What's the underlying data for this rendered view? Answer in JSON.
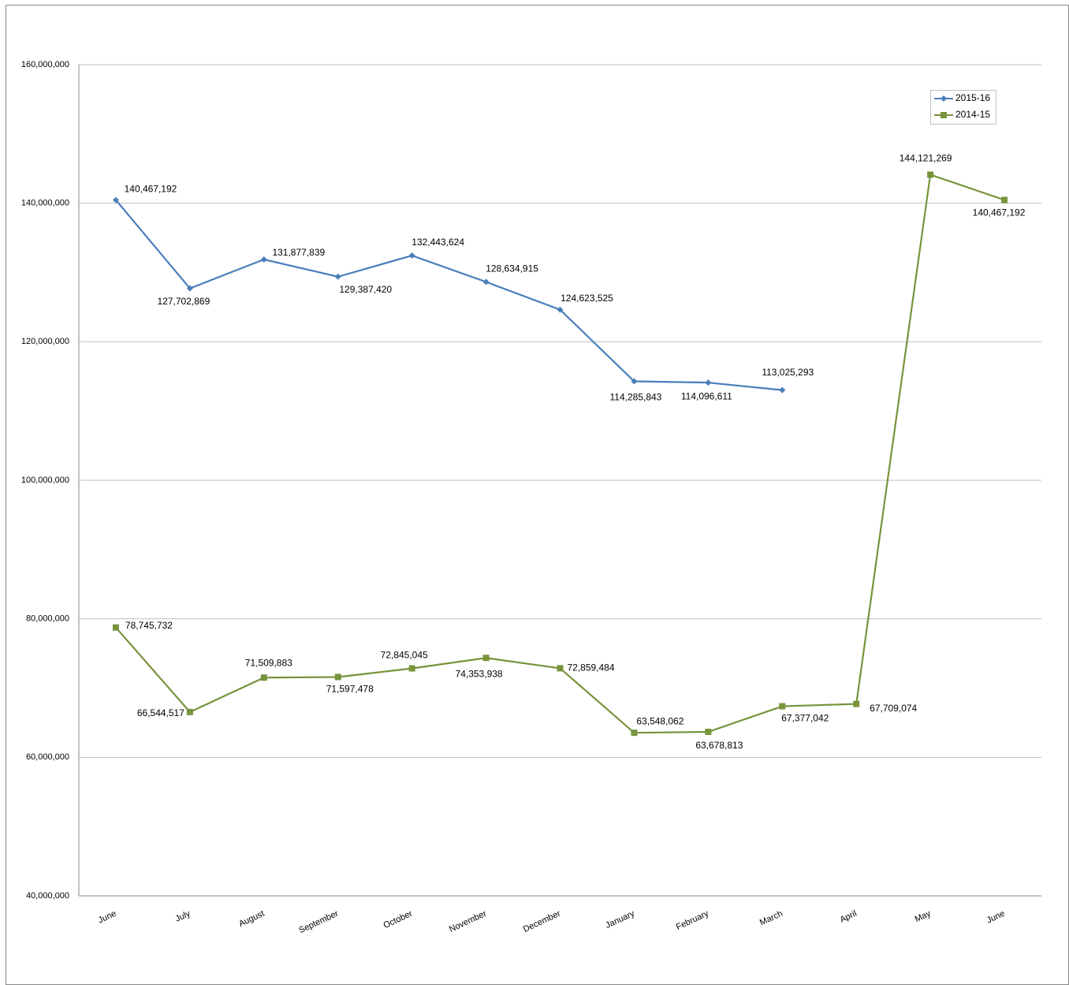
{
  "chart_data": {
    "type": "line",
    "categories": [
      "June",
      "July",
      "August",
      "September",
      "October",
      "November",
      "December",
      "January",
      "February",
      "March",
      "April",
      "May",
      "June"
    ],
    "series": [
      {
        "name": "2015-16",
        "color": "#4a7ebb",
        "marker": "diamond",
        "values": [
          140467192,
          127702869,
          131877839,
          129387420,
          132443624,
          128634915,
          124623525,
          114285843,
          114096611,
          113025293,
          null,
          null,
          null
        ],
        "value_labels": [
          "140,467,192",
          "127,702,869",
          "131,877,839",
          "129,387,420",
          "132,443,624",
          "128,634,915",
          "124,623,525",
          "114,285,843",
          "114,096,611",
          "113,025,293",
          null,
          null,
          null
        ]
      },
      {
        "name": "2014-15",
        "color": "#77933c",
        "marker": "square",
        "values": [
          78745732,
          66544517,
          71509883,
          71597478,
          72845045,
          74353938,
          72859484,
          63548062,
          63678813,
          67377042,
          67709074,
          144121269,
          140467192
        ],
        "value_labels": [
          "78,745,732",
          "66,544,517",
          "71,509,883",
          "71,597,478",
          "72,845,045",
          "74,353,938",
          "72,859,484",
          "63,548,062",
          "63,678,813",
          "67,377,042",
          "67,709,074",
          "144,121,269",
          "140,467,192"
        ]
      }
    ],
    "ylim": [
      40000000,
      160000000
    ],
    "yticks": [
      {
        "value": 40000000,
        "label": "40,000,000"
      },
      {
        "value": 60000000,
        "label": "60,000,000"
      },
      {
        "value": 80000000,
        "label": "80,000,000"
      },
      {
        "value": 100000000,
        "label": "100,000,000"
      },
      {
        "value": 120000000,
        "label": "120,000,000"
      },
      {
        "value": 140000000,
        "label": "140,000,000"
      },
      {
        "value": 160000000,
        "label": "160,000,000"
      }
    ],
    "grid": true,
    "legend": "upper right"
  }
}
